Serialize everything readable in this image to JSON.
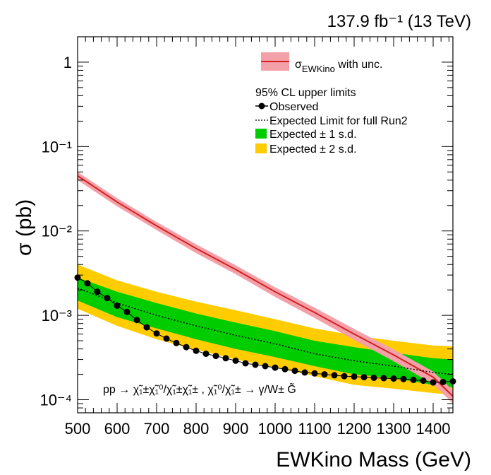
{
  "chart_data": {
    "type": "line",
    "lumi_label": "137.9 fb⁻¹ (13 TeV)",
    "xlabel": "EWKino Mass (GeV)",
    "ylabel": "σ (pb)",
    "xlim": [
      500,
      1450
    ],
    "ylim": [
      7e-05,
      2
    ],
    "yscale": "log",
    "x_ticks": [
      "500",
      "600",
      "700",
      "800",
      "900",
      "1000",
      "1100",
      "1200",
      "1300",
      "1400"
    ],
    "y_ticks": [
      {
        "value": 1,
        "label": "1"
      },
      {
        "value": 0.1,
        "label": "10⁻¹"
      },
      {
        "value": 0.01,
        "label": "10⁻²"
      },
      {
        "value": 0.001,
        "label": "10⁻³"
      },
      {
        "value": 0.0001,
        "label": "10⁻⁴"
      }
    ],
    "legend": {
      "placement": "top-right",
      "theory_label": "σEWKino with unc.",
      "cl_title": "95% CL upper limits",
      "observed": "Observed",
      "expected": "Expected Limit for full Run2",
      "band1": "Expected ± 1 s.d.",
      "band2": "Expected ± 2 s.d."
    },
    "process_label": "pp → χ̃₁±χ̃₁⁰/χ̃₁±χ̃₁± ,  χ̃₁⁰/χ̃₁± → γ/W± G̃",
    "colors": {
      "theory_line": "#d62020",
      "theory_band": "#f4a0a8",
      "band1": "#00cc00",
      "band2": "#ffcc00",
      "observed": "#000000",
      "expected": "#000000"
    },
    "series": [
      {
        "name": "σEWKino with unc.",
        "x": [
          500,
          600,
          700,
          800,
          900,
          1000,
          1100,
          1200,
          1300,
          1400,
          1450
        ],
        "values": [
          0.045,
          0.022,
          0.0115,
          0.0062,
          0.0035,
          0.0019,
          0.00108,
          0.0006,
          0.00034,
          0.000185,
          0.00011
        ],
        "unc": [
          0.11,
          0.11,
          0.11,
          0.12,
          0.12,
          0.13,
          0.14,
          0.15,
          0.16,
          0.17,
          0.18
        ]
      },
      {
        "name": "Expected Limit for full Run2",
        "x": [
          500,
          600,
          700,
          800,
          900,
          1000,
          1100,
          1200,
          1300,
          1400,
          1450
        ],
        "values": [
          0.0021,
          0.0014,
          0.001,
          0.00075,
          0.00058,
          0.00046,
          0.00035,
          0.00029,
          0.00025,
          0.00021,
          0.0002
        ],
        "band1_lo": [
          0.0015,
          0.00095,
          0.0007,
          0.00052,
          0.0004,
          0.00032,
          0.00025,
          0.0002,
          0.00018,
          0.00015,
          0.00014
        ],
        "band1_hi": [
          0.0028,
          0.0019,
          0.0014,
          0.00105,
          0.00082,
          0.00065,
          0.0005,
          0.00042,
          0.00036,
          0.00031,
          0.0003
        ],
        "band2_lo": [
          0.0012,
          0.00075,
          0.00052,
          0.00039,
          0.0003,
          0.00024,
          0.00019,
          0.00015,
          0.000135,
          0.00012,
          0.000115
        ],
        "band2_hi": [
          0.004,
          0.0026,
          0.0019,
          0.00145,
          0.00115,
          0.0009,
          0.0007,
          0.00058,
          0.0005,
          0.00044,
          0.00043
        ]
      },
      {
        "name": "Observed",
        "x": [
          500,
          525,
          550,
          575,
          600,
          625,
          650,
          675,
          700,
          725,
          750,
          775,
          800,
          825,
          850,
          875,
          900,
          925,
          950,
          975,
          1000,
          1025,
          1050,
          1075,
          1100,
          1125,
          1150,
          1175,
          1200,
          1225,
          1250,
          1275,
          1300,
          1325,
          1350,
          1375,
          1400,
          1425,
          1450
        ],
        "values": [
          0.0028,
          0.0024,
          0.0019,
          0.0016,
          0.0013,
          0.0011,
          0.00088,
          0.00072,
          0.00061,
          0.00053,
          0.00047,
          0.00042,
          0.00038,
          0.00035,
          0.00033,
          0.00031,
          0.00029,
          0.00027,
          0.00026,
          0.00025,
          0.00024,
          0.00023,
          0.00022,
          0.00021,
          0.000205,
          0.0002,
          0.000195,
          0.00019,
          0.000188,
          0.000185,
          0.000182,
          0.00018,
          0.000178,
          0.000176,
          0.000172,
          0.000168,
          0.00016,
          0.000162,
          0.000165
        ]
      }
    ]
  }
}
